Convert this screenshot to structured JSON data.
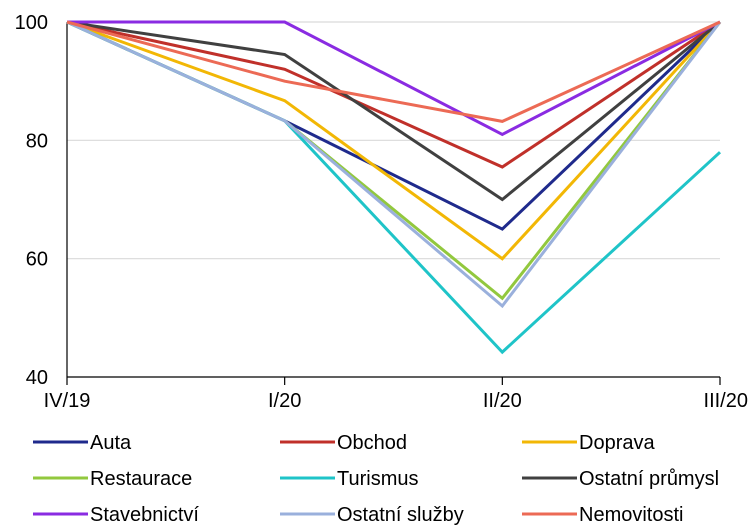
{
  "chart_data": {
    "type": "line",
    "title": "",
    "xlabel": "",
    "ylabel": "",
    "categories": [
      "IV/19",
      "I/20",
      "II/20",
      "III/20"
    ],
    "ylim": [
      40,
      100
    ],
    "yticks": [
      40,
      60,
      80,
      100
    ],
    "grid": true,
    "legend_position": "bottom",
    "series": [
      {
        "name": "Auta",
        "color": "#1f2a8c",
        "values": [
          100,
          83.3,
          65,
          100
        ]
      },
      {
        "name": "Obchod",
        "color": "#c0302a",
        "values": [
          100,
          92,
          75.5,
          100
        ]
      },
      {
        "name": "Doprava",
        "color": "#f2b705",
        "values": [
          100,
          86.7,
          60,
          100
        ]
      },
      {
        "name": "Restaurace",
        "color": "#92c83e",
        "values": [
          100,
          83.3,
          53.3,
          100
        ]
      },
      {
        "name": "Turismus",
        "color": "#1fc4c8",
        "values": [
          100,
          83.3,
          44.2,
          78
        ]
      },
      {
        "name": "Ostatní průmysl",
        "color": "#404040",
        "values": [
          100,
          94.5,
          70,
          100
        ]
      },
      {
        "name": "Stavebnictví",
        "color": "#8a2be2",
        "values": [
          100,
          100,
          81,
          100
        ]
      },
      {
        "name": "Ostatní služby",
        "color": "#9ab0dc",
        "values": [
          100,
          83.3,
          52,
          100
        ]
      },
      {
        "name": "Nemovitosti",
        "color": "#ec6a55",
        "values": [
          100,
          90,
          83.2,
          100
        ]
      }
    ]
  }
}
